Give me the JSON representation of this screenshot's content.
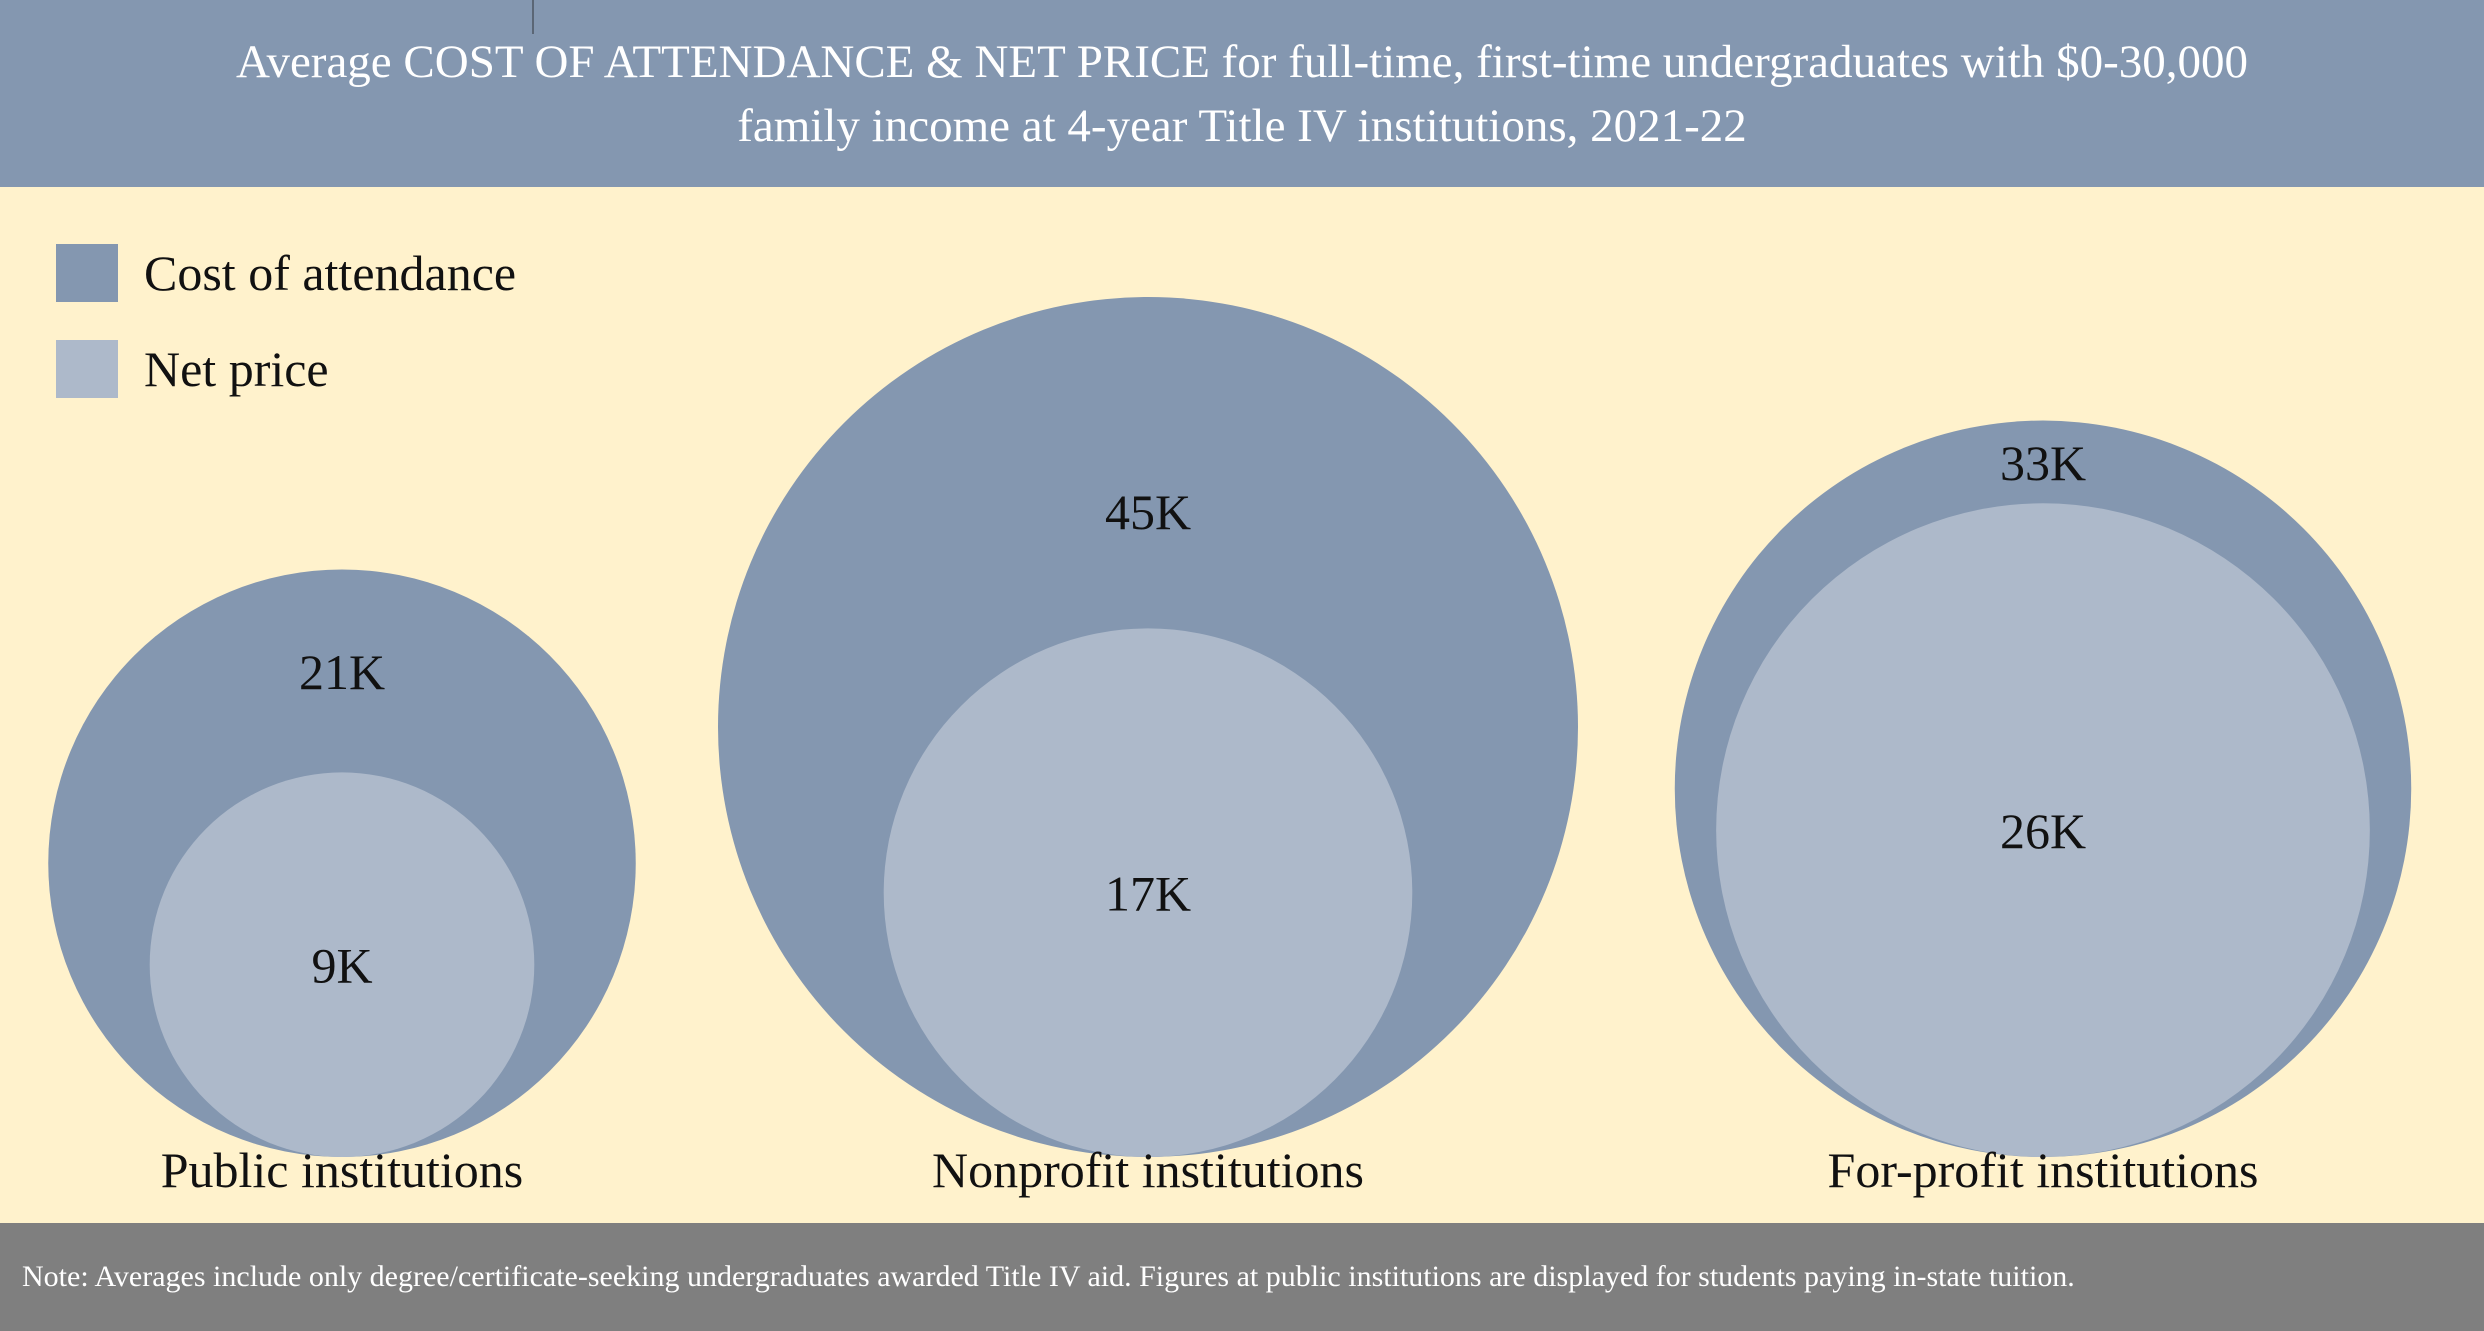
{
  "header": {
    "title_line1": "Average COST OF ATTENDANCE & NET PRICE for full-time, first-time undergraduates with $0-30,000",
    "title_line2": "family income at 4-year Title IV institutions, 2021-22"
  },
  "footer": {
    "note": "Note: Averages include only degree/certificate-seeking undergraduates awarded Title IV aid. Figures at public institutions are displayed for students paying in-state tuition."
  },
  "colors": {
    "header_bg": "#8497b0",
    "background": "#fff2cc",
    "cost_of_attendance": "#8497b0",
    "net_price": "#adb9ca",
    "footer_bg": "#7f7f7f"
  },
  "chart_data": {
    "type": "nested-bubble",
    "title": "Average COST OF ATTENDANCE & NET PRICE for full-time, first-time undergraduates with $0-30,000 family income at 4-year Title IV institutions, 2021-22",
    "legend_placement": "top-left",
    "categories": [
      "Public institutions",
      "Nonprofit institutions",
      "For-profit institutions"
    ],
    "series": [
      {
        "name": "Cost of attendance",
        "values": [
          21,
          45,
          33
        ],
        "labels": [
          "21K",
          "45K",
          "33K"
        ]
      },
      {
        "name": "Net price",
        "values": [
          9,
          17,
          26
        ],
        "labels": [
          "9K",
          "17K",
          "26K"
        ]
      }
    ],
    "unit": "K"
  }
}
